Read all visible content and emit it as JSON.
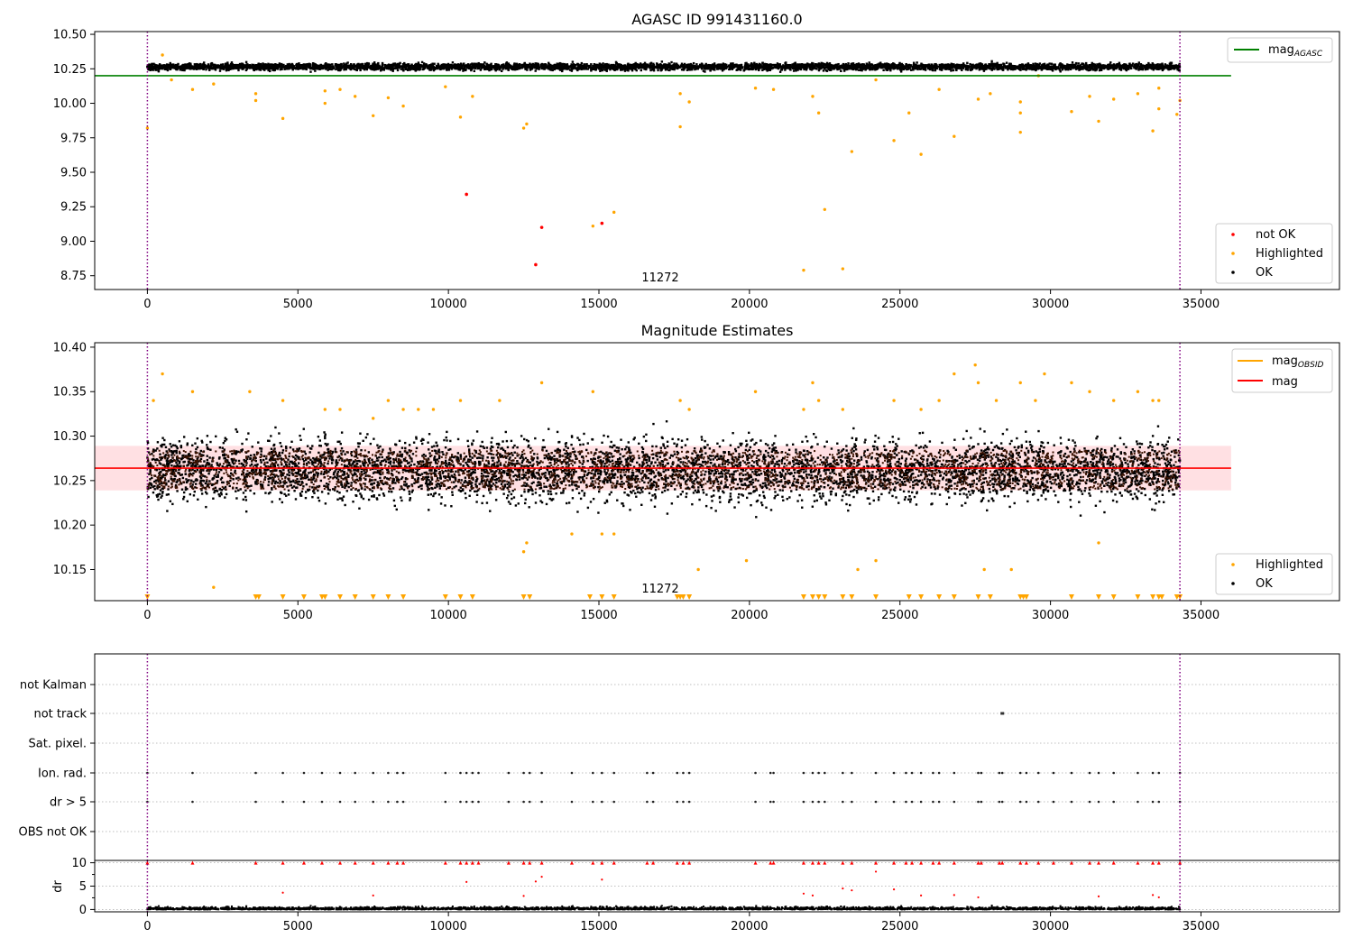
{
  "chart_data": [
    {
      "type": "scatter",
      "title": "AGASC ID 991431160.0",
      "xlim": [
        -1750,
        39600
      ],
      "ylim": [
        8.65,
        10.52
      ],
      "xticks": [
        0,
        5000,
        10000,
        15000,
        20000,
        25000,
        30000,
        35000
      ],
      "yticks": [
        "8.75",
        "9.00",
        "9.25",
        "9.50",
        "9.75",
        "10.00",
        "10.25",
        "10.50"
      ],
      "legend_lines": {
        "position": "top-right",
        "entries": [
          {
            "name": "mag",
            "sub": "AGASC",
            "color": "#008000"
          }
        ]
      },
      "legend_points": {
        "position": "bottom-right",
        "entries": [
          {
            "name": "not OK",
            "color": "#ff0000"
          },
          {
            "name": "Highlighted",
            "color": "#ffa500"
          },
          {
            "name": "OK",
            "color": "#000000"
          }
        ]
      },
      "annotation": {
        "text": "11272",
        "x": 17300,
        "y": 8.7
      },
      "vlines": [
        0,
        34300
      ],
      "hline": {
        "y": 10.2,
        "x0": -1750,
        "x1": 36000,
        "color": "#008000"
      },
      "band": {
        "center": 10.265,
        "half": 0.03,
        "x0": 0,
        "x1": 34300
      },
      "highlighted_points": [
        [
          0,
          9.82
        ],
        [
          500,
          10.35
        ],
        [
          800,
          10.17
        ],
        [
          1500,
          10.1
        ],
        [
          2200,
          10.14
        ],
        [
          3600,
          10.07
        ],
        [
          3600,
          10.02
        ],
        [
          4500,
          9.89
        ],
        [
          5900,
          10.09
        ],
        [
          5900,
          10.0
        ],
        [
          6400,
          10.1
        ],
        [
          6900,
          10.05
        ],
        [
          7500,
          9.91
        ],
        [
          8000,
          10.04
        ],
        [
          8500,
          9.98
        ],
        [
          9900,
          10.12
        ],
        [
          10400,
          9.9
        ],
        [
          10800,
          10.05
        ],
        [
          12500,
          9.82
        ],
        [
          12600,
          9.85
        ],
        [
          14800,
          9.11
        ],
        [
          15500,
          9.21
        ],
        [
          17700,
          9.83
        ],
        [
          17700,
          10.07
        ],
        [
          18000,
          10.01
        ],
        [
          20200,
          10.11
        ],
        [
          20800,
          10.1
        ],
        [
          21800,
          8.79
        ],
        [
          22100,
          10.05
        ],
        [
          22300,
          9.93
        ],
        [
          22500,
          9.23
        ],
        [
          23100,
          8.8
        ],
        [
          23400,
          9.65
        ],
        [
          24200,
          10.17
        ],
        [
          24800,
          9.73
        ],
        [
          25300,
          9.93
        ],
        [
          25700,
          9.63
        ],
        [
          26300,
          10.1
        ],
        [
          26800,
          9.76
        ],
        [
          27600,
          10.03
        ],
        [
          28000,
          10.07
        ],
        [
          29000,
          9.79
        ],
        [
          29000,
          9.93
        ],
        [
          29000,
          10.01
        ],
        [
          29600,
          10.2
        ],
        [
          30700,
          9.94
        ],
        [
          31300,
          10.05
        ],
        [
          31600,
          9.87
        ],
        [
          32100,
          10.03
        ],
        [
          32900,
          10.07
        ],
        [
          33400,
          9.8
        ],
        [
          33600,
          9.96
        ],
        [
          33600,
          10.11
        ],
        [
          34200,
          9.92
        ],
        [
          34300,
          10.02
        ]
      ],
      "notok_points": [
        [
          10600,
          9.34
        ],
        [
          12900,
          8.83
        ],
        [
          13100,
          9.1
        ],
        [
          15100,
          9.13
        ]
      ]
    },
    {
      "type": "scatter",
      "title": "Magnitude Estimates",
      "xlim": [
        -1750,
        39600
      ],
      "ylim": [
        10.115,
        10.405
      ],
      "xticks": [
        0,
        5000,
        10000,
        15000,
        20000,
        25000,
        30000,
        35000
      ],
      "yticks": [
        "10.15",
        "10.20",
        "10.25",
        "10.30",
        "10.35",
        "10.40"
      ],
      "legend_lines": {
        "position": "top-right",
        "entries": [
          {
            "name": "mag",
            "sub": "OBSID",
            "color": "#ffa500"
          },
          {
            "name": "mag",
            "sub": "",
            "color": "#ff0000"
          }
        ]
      },
      "legend_points": {
        "position": "bottom-right",
        "entries": [
          {
            "name": "Highlighted",
            "color": "#ffa500"
          },
          {
            "name": "OK",
            "color": "#000000"
          }
        ]
      },
      "annotation": {
        "text": "11272",
        "x": 17300,
        "y": 10.125
      },
      "vlines": [
        0,
        34300
      ],
      "hline": {
        "y": 10.264,
        "x0": -1750,
        "x1": 36000,
        "color": "#ff0000"
      },
      "shade": {
        "y0": 10.239,
        "y1": 10.289,
        "x0": -1750,
        "x1": 36000
      },
      "band": {
        "center": 10.262,
        "half": 0.03,
        "x0": 0,
        "x1": 34300
      },
      "highlighted_points": [
        [
          200,
          10.34
        ],
        [
          500,
          10.37
        ],
        [
          1500,
          10.35
        ],
        [
          2200,
          10.13
        ],
        [
          3400,
          10.35
        ],
        [
          4500,
          10.34
        ],
        [
          5900,
          10.33
        ],
        [
          6400,
          10.33
        ],
        [
          7500,
          10.32
        ],
        [
          8000,
          10.34
        ],
        [
          8500,
          10.33
        ],
        [
          9000,
          10.33
        ],
        [
          9500,
          10.33
        ],
        [
          10400,
          10.34
        ],
        [
          11700,
          10.34
        ],
        [
          12500,
          10.17
        ],
        [
          12600,
          10.18
        ],
        [
          13100,
          10.36
        ],
        [
          14100,
          10.19
        ],
        [
          14800,
          10.35
        ],
        [
          15100,
          10.19
        ],
        [
          15500,
          10.19
        ],
        [
          17700,
          10.34
        ],
        [
          18000,
          10.33
        ],
        [
          18300,
          10.15
        ],
        [
          19900,
          10.16
        ],
        [
          20200,
          10.35
        ],
        [
          21800,
          10.33
        ],
        [
          22100,
          10.36
        ],
        [
          22300,
          10.34
        ],
        [
          23100,
          10.33
        ],
        [
          23600,
          10.15
        ],
        [
          24200,
          10.16
        ],
        [
          24800,
          10.34
        ],
        [
          25700,
          10.33
        ],
        [
          26300,
          10.34
        ],
        [
          26800,
          10.37
        ],
        [
          27500,
          10.38
        ],
        [
          27600,
          10.36
        ],
        [
          27800,
          10.15
        ],
        [
          28200,
          10.34
        ],
        [
          28700,
          10.15
        ],
        [
          29000,
          10.36
        ],
        [
          29500,
          10.34
        ],
        [
          29800,
          10.37
        ],
        [
          30700,
          10.36
        ],
        [
          31300,
          10.35
        ],
        [
          31600,
          10.18
        ],
        [
          32100,
          10.34
        ],
        [
          32900,
          10.35
        ],
        [
          33400,
          10.34
        ],
        [
          33600,
          10.34
        ]
      ],
      "clipped_markers_x": [
        0,
        3600,
        3700,
        4500,
        5200,
        5800,
        5900,
        6400,
        6900,
        7500,
        8000,
        8500,
        9900,
        10400,
        10800,
        12500,
        12700,
        14700,
        15100,
        15500,
        17600,
        17700,
        17800,
        18000,
        21800,
        22100,
        22300,
        22500,
        23100,
        23400,
        24200,
        25300,
        25700,
        26300,
        26800,
        27600,
        28000,
        29000,
        29100,
        29200,
        30700,
        31600,
        32100,
        32900,
        33400,
        33600,
        33700,
        34200,
        34300
      ]
    },
    {
      "type": "scatter",
      "title": "",
      "xlim": [
        -1750,
        39600
      ],
      "categories": [
        "not Kalman",
        "not track",
        "Sat. pixel.",
        "Ion. rad.",
        "dr > 5",
        "OBS not OK"
      ],
      "flag_x": [
        0,
        1500,
        3600,
        4500,
        5200,
        5800,
        6400,
        6900,
        7500,
        8000,
        8300,
        8500,
        9900,
        10400,
        10600,
        10800,
        11000,
        12000,
        12500,
        12700,
        13100,
        14100,
        14800,
        15100,
        15500,
        16600,
        16800,
        17600,
        17800,
        18000,
        20200,
        20700,
        20800,
        21800,
        22100,
        22300,
        22500,
        23100,
        23400,
        24200,
        24800,
        25200,
        25400,
        25700,
        26100,
        26300,
        26800,
        27600,
        27700,
        28300,
        28400,
        29000,
        29200,
        29600,
        30100,
        30700,
        31300,
        31600,
        32100,
        32900,
        33400,
        33600,
        34300
      ],
      "not_track_x": [
        28400
      ],
      "dr_panel": {
        "ylabel": "dr",
        "ylim": [
          -0.5,
          10.5
        ],
        "yticks": [
          0,
          5,
          10
        ],
        "xticks": [
          0,
          5000,
          10000,
          15000,
          20000,
          25000,
          30000,
          35000
        ],
        "outliers": [
          [
            4500,
            3.6
          ],
          [
            10600,
            5.9
          ],
          [
            12500,
            2.9
          ],
          [
            12900,
            6.0
          ],
          [
            13100,
            7.0
          ],
          [
            15100,
            6.4
          ],
          [
            21800,
            3.4
          ],
          [
            22100,
            3.0
          ],
          [
            23100,
            4.5
          ],
          [
            23400,
            4.1
          ],
          [
            24200,
            8.1
          ],
          [
            24800,
            4.3
          ],
          [
            25700,
            3.0
          ],
          [
            26800,
            3.1
          ],
          [
            31600,
            2.8
          ],
          [
            33400,
            3.1
          ],
          [
            33600,
            2.6
          ],
          [
            7500,
            3.0
          ],
          [
            27600,
            2.6
          ]
        ]
      }
    }
  ]
}
